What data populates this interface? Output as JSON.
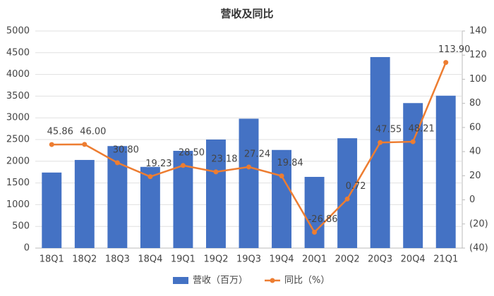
{
  "chart_data": {
    "type": "bar_line",
    "title": "营收及同比",
    "categories": [
      "18Q1",
      "18Q2",
      "18Q3",
      "18Q4",
      "19Q1",
      "19Q2",
      "19Q3",
      "19Q4",
      "20Q1",
      "20Q2",
      "20Q3",
      "20Q4",
      "21Q1"
    ],
    "series": [
      {
        "name": "营收（百万）",
        "type": "bar",
        "color": "#4472c4",
        "values": [
          1740,
          2030,
          2350,
          1870,
          2240,
          2500,
          2980,
          2260,
          1640,
          2530,
          4400,
          3340,
          3510
        ]
      },
      {
        "name": "同比（%）",
        "type": "line",
        "axis": "y2",
        "color": "#ed7d31",
        "values": [
          45.86,
          46.0,
          30.8,
          19.23,
          28.5,
          23.18,
          27.24,
          19.84,
          -26.86,
          0.72,
          47.55,
          48.21,
          113.9
        ],
        "value_labels": [
          "45.86",
          "46.00",
          "30.80",
          "19.23",
          "28.50",
          "23.18",
          "27.24",
          "19.84",
          "-26.86",
          "0.72",
          "47.55",
          "48.21",
          "113.90"
        ]
      }
    ],
    "ylim": [
      0,
      5000
    ],
    "yticks": [
      0,
      500,
      1000,
      1500,
      2000,
      2500,
      3000,
      3500,
      4000,
      4500,
      5000
    ],
    "y2lim": [
      -40,
      140
    ],
    "y2ticks": [
      {
        "value": -40,
        "label": "(40)"
      },
      {
        "value": -20,
        "label": "(20)"
      },
      0,
      20,
      40,
      60,
      80,
      100,
      120,
      140
    ],
    "grid": true,
    "legend": "bottom"
  }
}
